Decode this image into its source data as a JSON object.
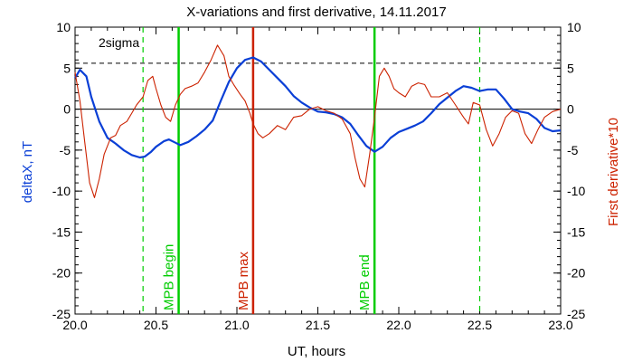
{
  "chart_data": {
    "type": "line",
    "title": "X-variations and first derivative, 14.11.2017",
    "xlabel": "UT, hours",
    "ylabel_left": "deltaX, nT",
    "ylabel_right": "First derivative*10",
    "xlim": [
      20.0,
      23.0
    ],
    "ylim": [
      -25,
      10
    ],
    "x_ticks": [
      20.0,
      20.5,
      21.0,
      21.5,
      22.0,
      22.5,
      23.0
    ],
    "x_tick_labels": [
      "20.0",
      "20.5",
      "21.0",
      "21.5",
      "22.0",
      "22.5",
      "23.0"
    ],
    "y_ticks": [
      10,
      5,
      0,
      -5,
      -10,
      -15,
      -20,
      -25
    ],
    "y_tick_labels_left": [
      "10",
      "5",
      "0",
      "-5",
      "-10",
      "-15",
      "-20",
      "-25"
    ],
    "y_tick_labels_right": [
      "10",
      "5",
      "0",
      "-5",
      "-10",
      "-15",
      "-20",
      "-25"
    ],
    "threshold": {
      "label": "2sigma",
      "y": 5.6,
      "style": "dashed",
      "color": "#000000"
    },
    "zero_line": {
      "y": 0,
      "color": "#000000"
    },
    "series": [
      {
        "color": "#0a3fd6",
        "role": "deltaX",
        "x": [
          20.0,
          20.03,
          20.07,
          20.1,
          20.15,
          20.2,
          20.25,
          20.3,
          20.35,
          20.4,
          20.43,
          20.47,
          20.5,
          20.55,
          20.58,
          20.62,
          20.65,
          20.7,
          20.75,
          20.8,
          20.85,
          20.9,
          20.95,
          21.0,
          21.05,
          21.1,
          21.15,
          21.2,
          21.25,
          21.3,
          21.35,
          21.4,
          21.45,
          21.5,
          21.55,
          21.6,
          21.65,
          21.7,
          21.75,
          21.8,
          21.85,
          21.9,
          21.95,
          22.0,
          22.05,
          22.1,
          22.15,
          22.2,
          22.25,
          22.3,
          22.35,
          22.4,
          22.45,
          22.5,
          22.55,
          22.6,
          22.65,
          22.7,
          22.75,
          22.8,
          22.85,
          22.9,
          22.95,
          23.0
        ],
        "y": [
          3.8,
          4.8,
          4.0,
          1.5,
          -1.5,
          -3.5,
          -4.2,
          -5.0,
          -5.6,
          -5.9,
          -5.8,
          -5.2,
          -4.6,
          -3.9,
          -3.7,
          -4.1,
          -4.4,
          -4.0,
          -3.3,
          -2.5,
          -1.4,
          1.0,
          3.3,
          5.0,
          6.0,
          6.3,
          5.8,
          4.8,
          3.8,
          2.8,
          1.6,
          0.8,
          0.2,
          -0.3,
          -0.4,
          -0.6,
          -1.0,
          -1.8,
          -3.2,
          -4.5,
          -5.2,
          -4.6,
          -3.5,
          -2.8,
          -2.4,
          -2.0,
          -1.5,
          -0.5,
          0.6,
          1.4,
          2.2,
          2.8,
          2.6,
          2.2,
          2.4,
          2.4,
          1.3,
          0.0,
          -0.3,
          -0.5,
          -1.2,
          -2.3,
          -2.7,
          -2.6
        ]
      },
      {
        "color": "#cc2200",
        "role": "first derivative*10",
        "x": [
          20.0,
          20.03,
          20.06,
          20.09,
          20.12,
          20.15,
          20.18,
          20.22,
          20.25,
          20.28,
          20.32,
          20.35,
          20.38,
          20.42,
          20.45,
          20.48,
          20.5,
          20.53,
          20.56,
          20.59,
          20.62,
          20.65,
          20.68,
          20.72,
          20.76,
          20.8,
          20.84,
          20.88,
          20.92,
          20.95,
          20.98,
          21.02,
          21.05,
          21.08,
          21.1,
          21.13,
          21.16,
          21.2,
          21.25,
          21.3,
          21.35,
          21.4,
          21.45,
          21.5,
          21.55,
          21.6,
          21.65,
          21.7,
          21.73,
          21.76,
          21.79,
          21.82,
          21.85,
          21.88,
          21.91,
          21.94,
          21.97,
          22.0,
          22.04,
          22.08,
          22.12,
          22.16,
          22.2,
          22.25,
          22.3,
          22.35,
          22.4,
          22.43,
          22.46,
          22.5,
          22.54,
          22.58,
          22.62,
          22.66,
          22.7,
          22.74,
          22.78,
          22.82,
          22.86,
          22.9,
          22.95,
          23.0
        ],
        "y": [
          4.5,
          1.0,
          -4.0,
          -9.0,
          -10.8,
          -8.5,
          -5.5,
          -3.5,
          -3.2,
          -2.0,
          -1.5,
          -0.5,
          0.5,
          1.5,
          3.5,
          4.0,
          2.5,
          0.5,
          -1.0,
          -1.5,
          0.5,
          1.8,
          2.5,
          2.8,
          3.2,
          4.5,
          6.0,
          7.8,
          6.5,
          4.0,
          3.0,
          1.8,
          1.0,
          -0.5,
          -1.8,
          -3.0,
          -3.5,
          -3.0,
          -2.0,
          -2.5,
          -1.0,
          -0.8,
          0.0,
          0.3,
          -0.2,
          -0.5,
          -1.2,
          -3.0,
          -6.0,
          -8.5,
          -9.5,
          -5.5,
          -1.0,
          4.0,
          5.0,
          4.0,
          2.5,
          2.0,
          1.5,
          2.8,
          3.2,
          3.0,
          1.5,
          1.5,
          2.0,
          0.5,
          -1.0,
          -1.8,
          0.8,
          0.5,
          -2.5,
          -4.5,
          -3.0,
          -1.0,
          -0.2,
          -0.5,
          -3.0,
          -4.2,
          -2.5,
          -1.0,
          -0.3,
          0.0
        ]
      }
    ],
    "vertical_lines": [
      {
        "x": 20.42,
        "color": "#00cc00",
        "style": "dashed",
        "label": ""
      },
      {
        "x": 20.64,
        "color": "#00cc00",
        "style": "solid",
        "label": "MPB begin"
      },
      {
        "x": 21.1,
        "color": "#cc2200",
        "style": "solid",
        "label": "MPB max"
      },
      {
        "x": 21.85,
        "color": "#00cc00",
        "style": "solid",
        "label": "MPB end"
      },
      {
        "x": 22.5,
        "color": "#00cc00",
        "style": "dashed",
        "label": ""
      }
    ],
    "grid": false,
    "legend": "none"
  }
}
